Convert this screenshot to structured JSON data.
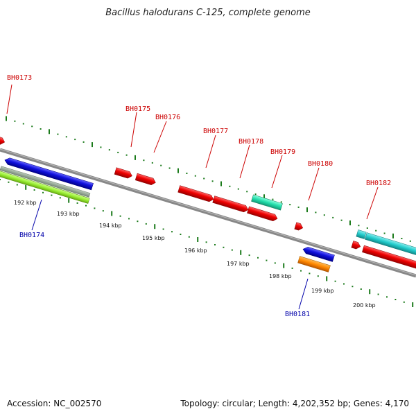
{
  "title": "Bacillus halodurans C-125, complete genome",
  "footer": {
    "accession": "Accession: NC_002570",
    "summary": "Topology: circular; Length: 4,202,352 bp; Genes: 4,170"
  },
  "scale_labels": [
    "192 kbp",
    "193 kbp",
    "194 kbp",
    "195 kbp",
    "196 kbp",
    "197 kbp",
    "198 kbp",
    "199 kbp",
    "200 kbp"
  ],
  "genes": [
    {
      "id": "BH0173",
      "color": "#cc0000"
    },
    {
      "id": "BH0174",
      "color": "#0000aa"
    },
    {
      "id": "BH0175",
      "color": "#cc0000"
    },
    {
      "id": "BH0176",
      "color": "#cc0000"
    },
    {
      "id": "BH0177",
      "color": "#cc0000"
    },
    {
      "id": "BH0178",
      "color": "#cc0000"
    },
    {
      "id": "BH0179",
      "color": "#cc0000"
    },
    {
      "id": "BH0180",
      "color": "#cc0000"
    },
    {
      "id": "BH0181",
      "color": "#0000aa"
    },
    {
      "id": "BH0182",
      "color": "#cc0000"
    }
  ],
  "colors": {
    "backbone": "#888888",
    "tick": "#1a7a1a",
    "red_feature": "#ee0000",
    "blue_feature": "#1010dd",
    "cyan_feature": "#22cccc",
    "teal_feature": "#22ddaa",
    "orange_feature": "#ff8800",
    "green_feature": "#99ee33",
    "gray_feature": "#99aa99"
  }
}
